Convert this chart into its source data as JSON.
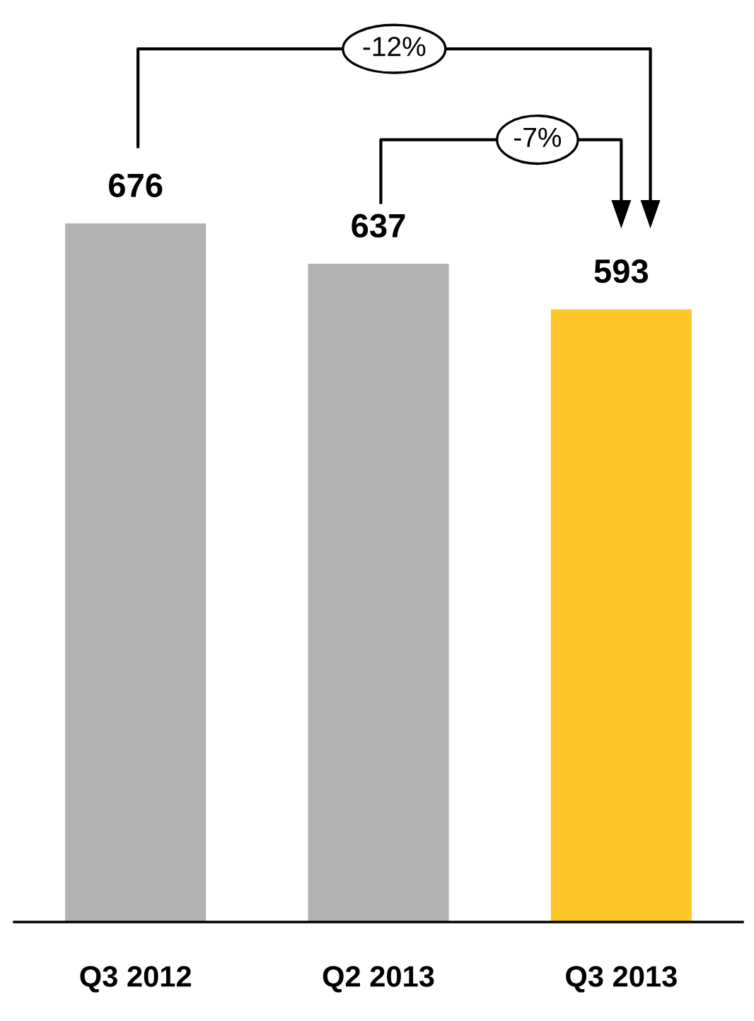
{
  "chart_data": {
    "type": "bar",
    "categories": [
      "Q3 2012",
      "Q2 2013",
      "Q3 2013"
    ],
    "values": [
      676,
      637,
      593
    ],
    "colors": [
      "#b2b2b2",
      "#b2b2b2",
      "#ffc72c"
    ],
    "data_labels": true,
    "annotations": [
      "-12%",
      "-7%"
    ]
  }
}
